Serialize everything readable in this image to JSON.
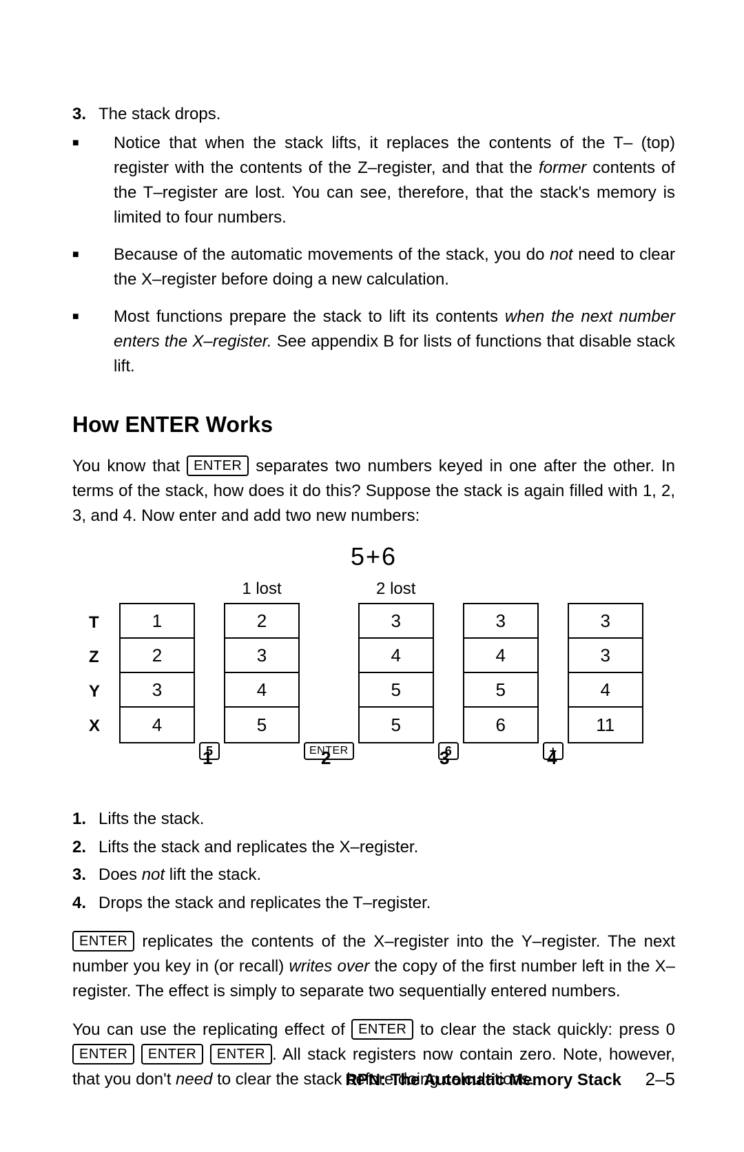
{
  "list_top": {
    "item3_num": "3.",
    "item3_text": "The stack drops."
  },
  "bullets": [
    {
      "pre": "Notice that when the stack lifts, it replaces the contents of the T– (top) register with the contents of the Z–register, and that the ",
      "it1": "former",
      "post": " contents of the T–register are lost. You can see, therefore, that the stack's memory is limited to four numbers."
    },
    {
      "pre": "Because of the automatic movements of the stack, you do ",
      "it1": "not",
      "post": " need to clear the X–register before doing a new calculation."
    },
    {
      "pre": "Most functions prepare the stack to lift its contents ",
      "it1": "when the next number enters the X–register.",
      "post": " See appendix B for lists of functions that disable stack lift."
    }
  ],
  "heading": "How ENTER Works",
  "intro": {
    "pre": "You know that ",
    "key": "ENTER",
    "post": " separates two numbers keyed in one after the other. In terms of the stack, how does it do this? Suppose the stack is again filled with 1, 2, 3, and 4. Now enter and add two new numbers:"
  },
  "expression": "5+6",
  "diagram": {
    "reg_labels": [
      "T",
      "Z",
      "Y",
      "X"
    ],
    "columns": [
      {
        "lost": "",
        "cells": [
          "1",
          "2",
          "3",
          "4"
        ]
      },
      {
        "lost": "1 lost",
        "cells": [
          "2",
          "3",
          "4",
          "5"
        ]
      },
      {
        "lost": "2 lost",
        "cells": [
          "3",
          "4",
          "5",
          "5"
        ]
      },
      {
        "lost": "",
        "cells": [
          "3",
          "4",
          "5",
          "6"
        ]
      },
      {
        "lost": "",
        "cells": [
          "3",
          "3",
          "4",
          "11"
        ]
      }
    ],
    "ops": [
      "5",
      "ENTER",
      "6",
      "+"
    ],
    "step_nums": [
      "1",
      "2",
      "3",
      "4"
    ]
  },
  "steps": [
    {
      "num": "1.",
      "pre": "Lifts the stack.",
      "it": "",
      "post": ""
    },
    {
      "num": "2.",
      "pre": "Lifts the stack and replicates the X–register.",
      "it": "",
      "post": ""
    },
    {
      "num": "3.",
      "pre": "Does ",
      "it": "not",
      "post": " lift the stack."
    },
    {
      "num": "4.",
      "pre": "Drops the stack and replicates the T–register.",
      "it": "",
      "post": ""
    }
  ],
  "para2": {
    "key": "ENTER",
    "pre": " replicates the contents of the X–register into the Y–register. The next number you key in (or recall) ",
    "it": "writes over",
    "post": " the copy of the first number left in the X–register. The effect is simply to separate two sequentially entered numbers."
  },
  "para3": {
    "a": "You can use the replicating effect of ",
    "k1": "ENTER",
    "b": " to clear the stack quickly: press 0 ",
    "k2": "ENTER",
    "k3": "ENTER",
    "k4": "ENTER",
    "c": ". All stack registers now contain zero. Note, however, that you don't ",
    "it": "need",
    "d": " to clear the stack before doing calculations."
  },
  "footer": {
    "title": "RPN: The Automatic Memory Stack",
    "page": "2–5"
  }
}
